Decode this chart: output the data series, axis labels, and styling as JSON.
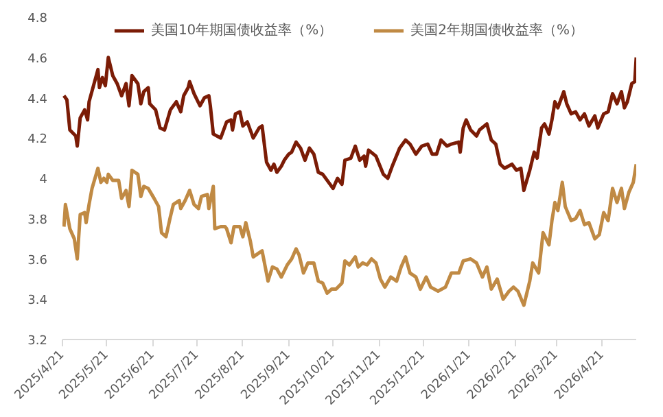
{
  "chart_data": {
    "type": "line",
    "legend": "top",
    "grid": false,
    "line_style": "solid",
    "ylim": [
      3.2,
      4.8
    ],
    "yticks": [
      3.2,
      3.4,
      3.6,
      3.8,
      4,
      4.2,
      4.4,
      4.6,
      4.8
    ],
    "xlim": [
      "2025-04-21",
      "2026-05-14"
    ],
    "xticks": [
      {
        "value": "2025-04-21",
        "label": "2025/4/21"
      },
      {
        "value": "2025-05-21",
        "label": "2025/5/21"
      },
      {
        "value": "2025-06-21",
        "label": "2025/6/21"
      },
      {
        "value": "2025-07-21",
        "label": "2025/7/21"
      },
      {
        "value": "2025-08-21",
        "label": "2025/8/21"
      },
      {
        "value": "2025-09-21",
        "label": "2025/9/21"
      },
      {
        "value": "2025-10-21",
        "label": "2025/10/21"
      },
      {
        "value": "2025-11-21",
        "label": "2025/11/21"
      },
      {
        "value": "2025-12-21",
        "label": "2025/12/21"
      },
      {
        "value": "2026-01-21",
        "label": "2026/1/21"
      },
      {
        "value": "2026-02-21",
        "label": "2026/2/21"
      },
      {
        "value": "2026-03-21",
        "label": "2026/3/21"
      },
      {
        "value": "2026-04-21",
        "label": "2026/4/21"
      }
    ],
    "series": [
      {
        "name": "美国10年期国债收益率（%）",
        "color": "#7b1c06",
        "x": [
          "2025-04-22",
          "2025-04-24",
          "2025-04-26",
          "2025-04-30",
          "2025-05-01",
          "2025-05-03",
          "2025-05-06",
          "2025-05-08",
          "2025-05-09",
          "2025-05-12",
          "2025-05-15",
          "2025-05-16",
          "2025-05-18",
          "2025-05-20",
          "2025-05-22",
          "2025-05-25",
          "2025-05-28",
          "2025-05-31",
          "2025-06-03",
          "2025-06-05",
          "2025-06-07",
          "2025-06-11",
          "2025-06-13",
          "2025-06-15",
          "2025-06-18",
          "2025-06-19",
          "2025-06-23",
          "2025-06-26",
          "2025-06-29",
          "2025-07-03",
          "2025-07-07",
          "2025-07-10",
          "2025-07-12",
          "2025-07-15",
          "2025-07-16",
          "2025-07-19",
          "2025-07-23",
          "2025-07-26",
          "2025-07-29",
          "2025-07-30",
          "2025-08-01",
          "2025-08-06",
          "2025-08-10",
          "2025-08-13",
          "2025-08-14",
          "2025-08-16",
          "2025-08-19",
          "2025-08-21",
          "2025-08-24",
          "2025-08-28",
          "2025-09-01",
          "2025-09-03",
          "2025-09-06",
          "2025-09-09",
          "2025-09-11",
          "2025-09-13",
          "2025-09-16",
          "2025-09-18",
          "2025-09-21",
          "2025-09-23",
          "2025-09-26",
          "2025-09-29",
          "2025-10-02",
          "2025-10-05",
          "2025-10-08",
          "2025-10-11",
          "2025-10-14",
          "2025-10-18",
          "2025-10-21",
          "2025-10-24",
          "2025-10-27",
          "2025-10-29",
          "2025-11-02",
          "2025-11-05",
          "2025-11-08",
          "2025-11-11",
          "2025-11-12",
          "2025-11-14",
          "2025-11-19",
          "2025-11-24",
          "2025-11-27",
          "2025-11-30",
          "2025-12-05",
          "2025-12-09",
          "2025-12-12",
          "2025-12-16",
          "2025-12-20",
          "2025-12-24",
          "2025-12-27",
          "2025-12-30",
          "2026-01-02",
          "2026-01-06",
          "2026-01-09",
          "2026-01-14",
          "2026-01-15",
          "2026-01-17",
          "2026-01-19",
          "2026-01-22",
          "2026-01-26",
          "2026-01-28",
          "2026-02-02",
          "2026-02-05",
          "2026-02-08",
          "2026-02-11",
          "2026-02-14",
          "2026-02-19",
          "2026-02-22",
          "2026-02-25",
          "2026-02-27",
          "2026-03-03",
          "2026-03-06",
          "2026-03-08",
          "2026-03-11",
          "2026-03-13",
          "2026-03-16",
          "2026-03-18",
          "2026-03-20",
          "2026-03-22",
          "2026-03-26",
          "2026-03-28",
          "2026-03-31",
          "2026-04-03",
          "2026-04-06",
          "2026-04-09",
          "2026-04-12",
          "2026-04-16",
          "2026-04-18",
          "2026-04-22",
          "2026-04-25",
          "2026-04-28",
          "2026-05-01",
          "2026-05-04",
          "2026-05-06",
          "2026-05-08",
          "2026-05-11",
          "2026-05-13",
          "2026-05-14"
        ],
        "values": [
          4.41,
          4.39,
          4.24,
          4.21,
          4.16,
          4.3,
          4.34,
          4.29,
          4.38,
          4.46,
          4.54,
          4.45,
          4.5,
          4.46,
          4.6,
          4.51,
          4.47,
          4.41,
          4.47,
          4.36,
          4.51,
          4.47,
          4.37,
          4.43,
          4.45,
          4.37,
          4.34,
          4.25,
          4.24,
          4.34,
          4.38,
          4.33,
          4.41,
          4.45,
          4.48,
          4.42,
          4.36,
          4.4,
          4.41,
          4.36,
          4.22,
          4.2,
          4.28,
          4.29,
          4.24,
          4.32,
          4.33,
          4.26,
          4.28,
          4.2,
          4.25,
          4.26,
          4.08,
          4.04,
          4.07,
          4.03,
          4.06,
          4.09,
          4.12,
          4.13,
          4.18,
          4.15,
          4.09,
          4.15,
          4.12,
          4.03,
          4.02,
          3.98,
          3.95,
          4.0,
          3.97,
          4.09,
          4.1,
          4.16,
          4.09,
          4.11,
          4.06,
          4.14,
          4.11,
          4.02,
          4.0,
          4.06,
          4.15,
          4.19,
          4.17,
          4.12,
          4.16,
          4.17,
          4.12,
          4.12,
          4.19,
          4.16,
          4.17,
          4.18,
          4.13,
          4.25,
          4.29,
          4.24,
          4.21,
          4.24,
          4.27,
          4.19,
          4.17,
          4.07,
          4.05,
          4.07,
          4.04,
          4.05,
          3.94,
          4.04,
          4.13,
          4.1,
          4.25,
          4.27,
          4.22,
          4.29,
          4.38,
          4.35,
          4.43,
          4.37,
          4.32,
          4.33,
          4.29,
          4.32,
          4.26,
          4.31,
          4.25,
          4.32,
          4.33,
          4.42,
          4.37,
          4.43,
          4.35,
          4.38,
          4.47,
          4.48,
          4.6
        ]
      },
      {
        "name": "美国2年期国债收益率（%）",
        "color": "#c08a44",
        "x": [
          "2025-04-22",
          "2025-04-23",
          "2025-04-26",
          "2025-04-29",
          "2025-05-01",
          "2025-05-03",
          "2025-05-06",
          "2025-05-07",
          "2025-05-09",
          "2025-05-11",
          "2025-05-15",
          "2025-05-17",
          "2025-05-19",
          "2025-05-21",
          "2025-05-22",
          "2025-05-25",
          "2025-05-29",
          "2025-05-31",
          "2025-06-03",
          "2025-06-05",
          "2025-06-07",
          "2025-06-11",
          "2025-06-13",
          "2025-06-15",
          "2025-06-18",
          "2025-06-22",
          "2025-06-25",
          "2025-06-27",
          "2025-06-30",
          "2025-07-03",
          "2025-07-05",
          "2025-07-09",
          "2025-07-10",
          "2025-07-13",
          "2025-07-16",
          "2025-07-19",
          "2025-07-22",
          "2025-07-24",
          "2025-07-28",
          "2025-07-29",
          "2025-08-01",
          "2025-08-02",
          "2025-08-06",
          "2025-08-09",
          "2025-08-10",
          "2025-08-13",
          "2025-08-15",
          "2025-08-19",
          "2025-08-21",
          "2025-08-23",
          "2025-08-26",
          "2025-08-28",
          "2025-09-01",
          "2025-09-03",
          "2025-09-07",
          "2025-09-10",
          "2025-09-13",
          "2025-09-16",
          "2025-09-20",
          "2025-09-23",
          "2025-09-26",
          "2025-09-28",
          "2025-10-01",
          "2025-10-04",
          "2025-10-08",
          "2025-10-11",
          "2025-10-14",
          "2025-10-17",
          "2025-10-20",
          "2025-10-23",
          "2025-10-27",
          "2025-10-29",
          "2025-11-01",
          "2025-11-05",
          "2025-11-07",
          "2025-11-10",
          "2025-11-13",
          "2025-11-16",
          "2025-11-19",
          "2025-11-22",
          "2025-11-25",
          "2025-11-29",
          "2025-12-03",
          "2025-12-06",
          "2025-12-09",
          "2025-12-12",
          "2025-12-16",
          "2025-12-19",
          "2025-12-23",
          "2025-12-26",
          "2025-12-31",
          "2026-01-05",
          "2026-01-09",
          "2026-01-14",
          "2026-01-17",
          "2026-01-22",
          "2026-01-26",
          "2026-01-30",
          "2026-02-02",
          "2026-02-05",
          "2026-02-09",
          "2026-02-13",
          "2026-02-17",
          "2026-02-20",
          "2026-02-23",
          "2026-02-27",
          "2026-03-03",
          "2026-03-05",
          "2026-03-09",
          "2026-03-12",
          "2026-03-16",
          "2026-03-18",
          "2026-03-20",
          "2026-03-22",
          "2026-03-25",
          "2026-03-27",
          "2026-03-31",
          "2026-04-03",
          "2026-04-06",
          "2026-04-09",
          "2026-04-12",
          "2026-04-16",
          "2026-04-19",
          "2026-04-22",
          "2026-04-25",
          "2026-04-28",
          "2026-05-01",
          "2026-05-04",
          "2026-05-06",
          "2026-05-09",
          "2026-05-12",
          "2026-05-14"
        ],
        "values": [
          3.76,
          3.87,
          3.75,
          3.7,
          3.6,
          3.82,
          3.83,
          3.78,
          3.87,
          3.95,
          4.05,
          3.98,
          4.0,
          3.98,
          4.02,
          3.99,
          3.99,
          3.9,
          3.94,
          3.86,
          4.04,
          4.02,
          3.91,
          3.96,
          3.95,
          3.9,
          3.86,
          3.73,
          3.71,
          3.81,
          3.87,
          3.89,
          3.85,
          3.89,
          3.94,
          3.87,
          3.85,
          3.91,
          3.92,
          3.85,
          3.96,
          3.75,
          3.76,
          3.76,
          3.75,
          3.68,
          3.76,
          3.76,
          3.71,
          3.78,
          3.69,
          3.61,
          3.63,
          3.64,
          3.49,
          3.56,
          3.55,
          3.51,
          3.57,
          3.6,
          3.65,
          3.62,
          3.53,
          3.58,
          3.58,
          3.49,
          3.48,
          3.43,
          3.45,
          3.45,
          3.48,
          3.59,
          3.57,
          3.61,
          3.56,
          3.58,
          3.57,
          3.6,
          3.58,
          3.5,
          3.46,
          3.51,
          3.49,
          3.56,
          3.61,
          3.53,
          3.51,
          3.45,
          3.51,
          3.46,
          3.44,
          3.46,
          3.53,
          3.53,
          3.59,
          3.6,
          3.58,
          3.51,
          3.56,
          3.45,
          3.5,
          3.4,
          3.44,
          3.46,
          3.44,
          3.37,
          3.49,
          3.58,
          3.53,
          3.73,
          3.67,
          3.79,
          3.88,
          3.84,
          3.98,
          3.86,
          3.79,
          3.8,
          3.84,
          3.77,
          3.78,
          3.7,
          3.72,
          3.83,
          3.79,
          3.95,
          3.88,
          3.95,
          3.85,
          3.93,
          3.98,
          4.07
        ]
      }
    ]
  }
}
